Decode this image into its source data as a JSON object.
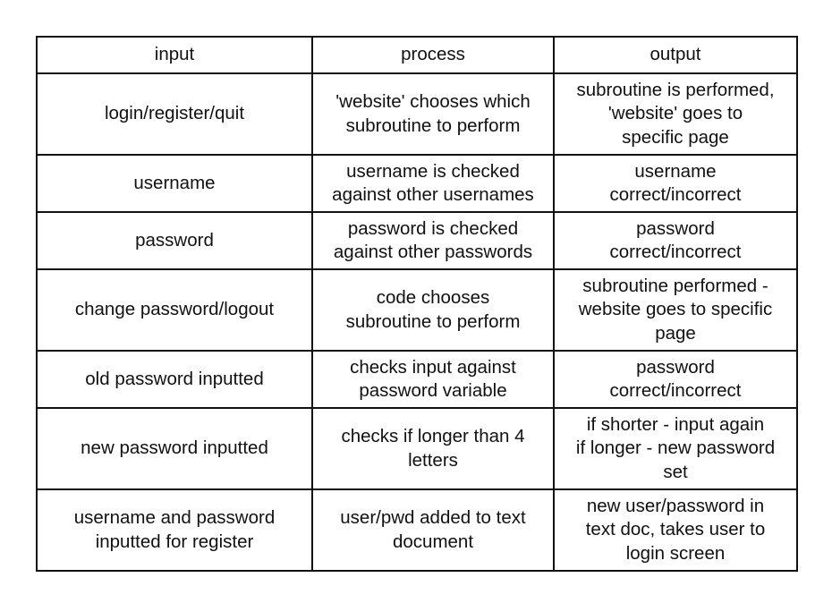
{
  "table": {
    "headers": {
      "input": "input",
      "process": "process",
      "output": "output"
    },
    "rows": [
      {
        "input": "login/register/quit",
        "process": "'website' chooses which\nsubroutine to perform",
        "output": "subroutine is performed,\n'website' goes to\nspecific page"
      },
      {
        "input": "username",
        "process": "username is checked\nagainst other usernames",
        "output": "username\ncorrect/incorrect"
      },
      {
        "input": "password",
        "process": "password is checked\nagainst other passwords",
        "output": "password\ncorrect/incorrect"
      },
      {
        "input": "change password/logout",
        "process": "code chooses\nsubroutine to perform",
        "output": "subroutine performed -\nwebsite goes to specific\npage"
      },
      {
        "input": "old password inputted",
        "process": "checks input against\npassword variable",
        "output": "password\ncorrect/incorrect"
      },
      {
        "input": "new password inputted",
        "process": "checks if longer than 4\nletters",
        "output": "if shorter - input again\nif longer - new password\nset"
      },
      {
        "input": "username and password\ninputted for register",
        "process": "user/pwd added to text\ndocument",
        "output": "new user/password in\ntext doc, takes user to\nlogin screen"
      }
    ]
  }
}
